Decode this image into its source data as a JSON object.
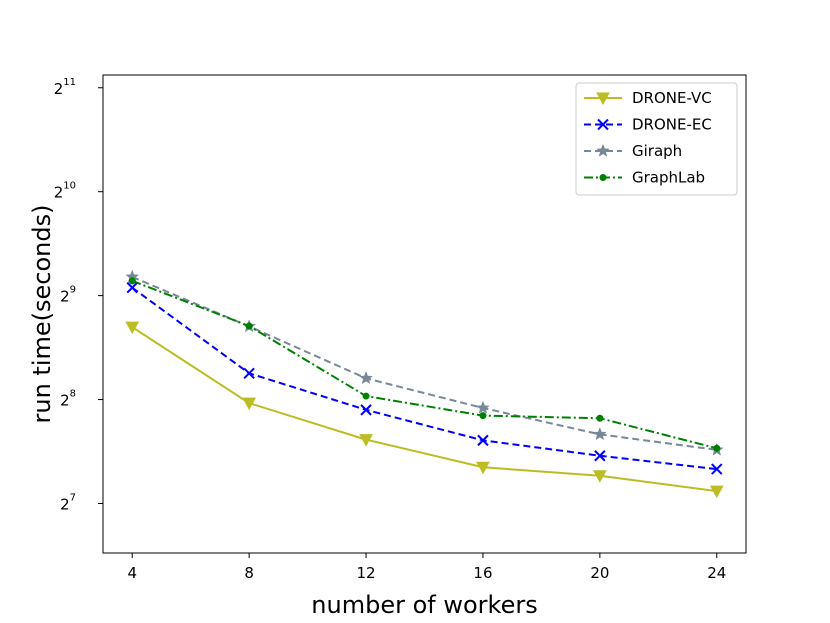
{
  "chart_data": {
    "type": "line",
    "title": "",
    "xlabel": "number of workers",
    "ylabel": "run time(seconds)",
    "x": [
      4,
      8,
      12,
      16,
      20,
      24
    ],
    "xticks": [
      "4",
      "8",
      "12",
      "16",
      "20",
      "24"
    ],
    "xlim": [
      3,
      25
    ],
    "yscale": "log2",
    "yticks": [
      {
        "value": 128,
        "base": "2",
        "exp": "7"
      },
      {
        "value": 256,
        "base": "2",
        "exp": "8"
      },
      {
        "value": 512,
        "base": "2",
        "exp": "9"
      },
      {
        "value": 1024,
        "base": "2",
        "exp": "10"
      },
      {
        "value": 2048,
        "base": "2",
        "exp": "11"
      }
    ],
    "ylim": [
      92,
      2230
    ],
    "grid": false,
    "legend_position": "top-right",
    "series": [
      {
        "name": "DRONE-VC",
        "values": [
          415,
          250,
          196,
          163,
          154,
          139
        ],
        "color": "#bcbd22",
        "dash": "solid",
        "marker": "triangle-down"
      },
      {
        "name": "DRONE-EC",
        "values": [
          540,
          305,
          239,
          195,
          176,
          161
        ],
        "color": "#0000ff",
        "dash": "dashed",
        "marker": "x"
      },
      {
        "name": "Giraph",
        "values": [
          580,
          417,
          295,
          242,
          203,
          183
        ],
        "color": "#778899",
        "dash": "dashed",
        "marker": "star"
      },
      {
        "name": "GraphLab",
        "values": [
          565,
          418,
          262,
          230,
          226,
          185
        ],
        "color": "#008000",
        "dash": "dashdot",
        "marker": "dot"
      }
    ]
  }
}
